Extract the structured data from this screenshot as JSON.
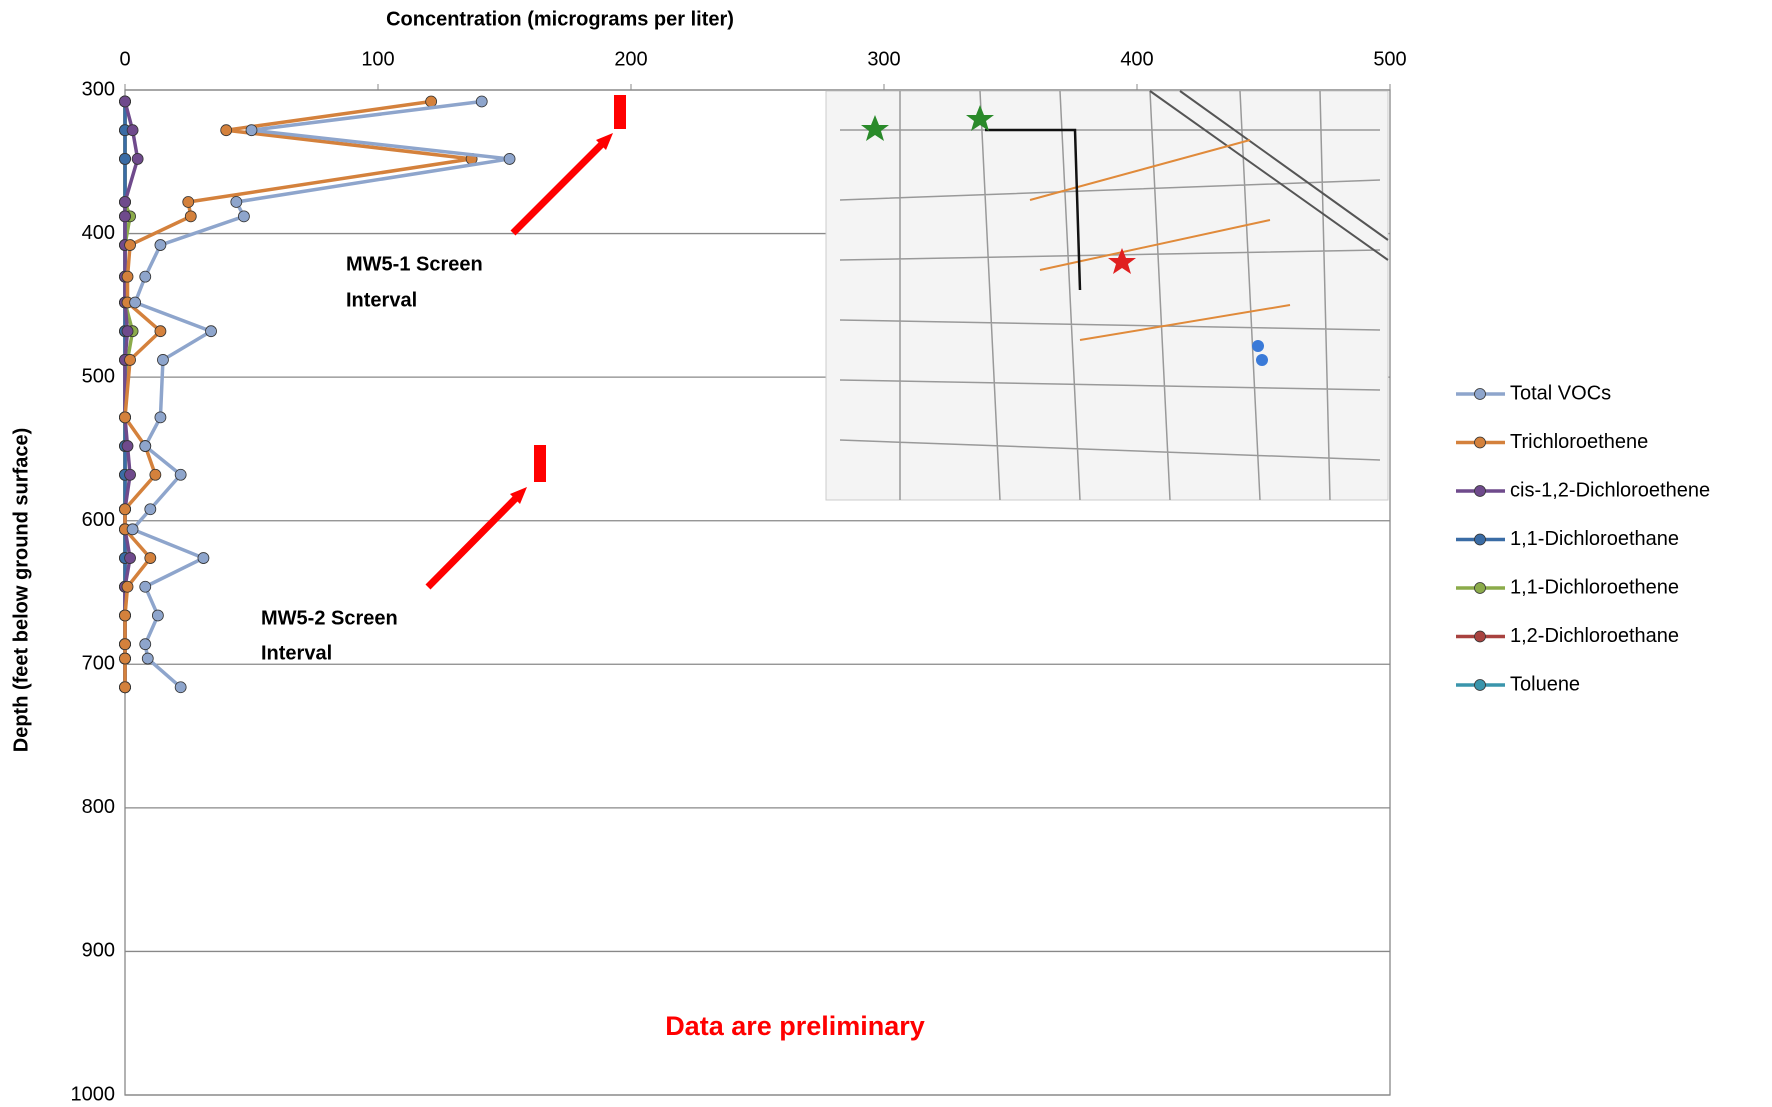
{
  "chart_data": {
    "type": "line",
    "title": "Concentration (micrograms per liter)",
    "y_label": "Depth (feet below ground surface)",
    "orientation": "vertical-depth",
    "depth": [
      308,
      328,
      348,
      378,
      388,
      408,
      430,
      448,
      468,
      488,
      528,
      548,
      568,
      592,
      606,
      626,
      646,
      666,
      686,
      696,
      716
    ],
    "series": [
      {
        "name": "Total VOCs",
        "color": "#8ea5cc",
        "values": [
          141,
          50,
          152,
          44,
          47,
          14,
          8,
          4,
          34,
          15,
          14,
          8,
          22,
          10,
          3,
          31,
          8,
          13,
          8,
          9,
          22
        ]
      },
      {
        "name": "Trichloroethene",
        "color": "#d4813c",
        "values": [
          121,
          40,
          137,
          25,
          26,
          2,
          1,
          1,
          14,
          2,
          0,
          8,
          12,
          0,
          0,
          10,
          1,
          0,
          0,
          0,
          0
        ]
      },
      {
        "name": "cis-1,2-Dichloroethene",
        "color": "#6f4a8c",
        "values": [
          0,
          3,
          5,
          0,
          0,
          0,
          0,
          0,
          1,
          0,
          0,
          1,
          2,
          0,
          0,
          2,
          0,
          0,
          0,
          0,
          0
        ]
      },
      {
        "name": "1,1-Dichloroethane",
        "color": "#3a6ca5",
        "values": [
          0,
          0,
          0,
          0,
          0,
          0,
          0,
          0,
          0,
          0,
          0,
          0,
          0,
          0,
          0,
          0,
          0,
          0,
          0,
          0,
          0
        ]
      },
      {
        "name": "1,1-Dichloroethene",
        "color": "#8bab4a",
        "values": [
          0,
          0,
          0,
          0,
          2,
          0,
          0,
          0,
          3,
          1,
          0,
          0,
          0,
          0,
          0,
          0,
          0,
          0,
          0,
          0,
          0
        ]
      },
      {
        "name": "1,2-Dichloroethane",
        "color": "#a8423f",
        "values": [
          0,
          0,
          0,
          0,
          0,
          0,
          0,
          0,
          0,
          0,
          0,
          0,
          0,
          0,
          0,
          0,
          0,
          0,
          0,
          0,
          0
        ]
      },
      {
        "name": "Toluene",
        "color": "#3a95ac",
        "values": [
          0,
          0,
          0,
          0,
          0,
          0,
          0,
          0,
          0,
          0,
          0,
          0,
          0,
          0,
          0,
          0,
          0,
          0,
          0,
          0,
          0
        ]
      }
    ],
    "xlim": [
      0,
      500
    ],
    "xticks": [
      0,
      100,
      200,
      300,
      400,
      500
    ],
    "ylim": [
      300,
      1000
    ],
    "yticks": [
      300,
      400,
      500,
      600,
      700,
      800,
      900,
      1000
    ],
    "grid": true,
    "legend": "right",
    "annotations": [
      [
        "MW5-1 Screen",
        "Interval"
      ],
      [
        "MW5-2 Screen",
        "Interval"
      ],
      [
        "Data are preliminary"
      ]
    ]
  }
}
